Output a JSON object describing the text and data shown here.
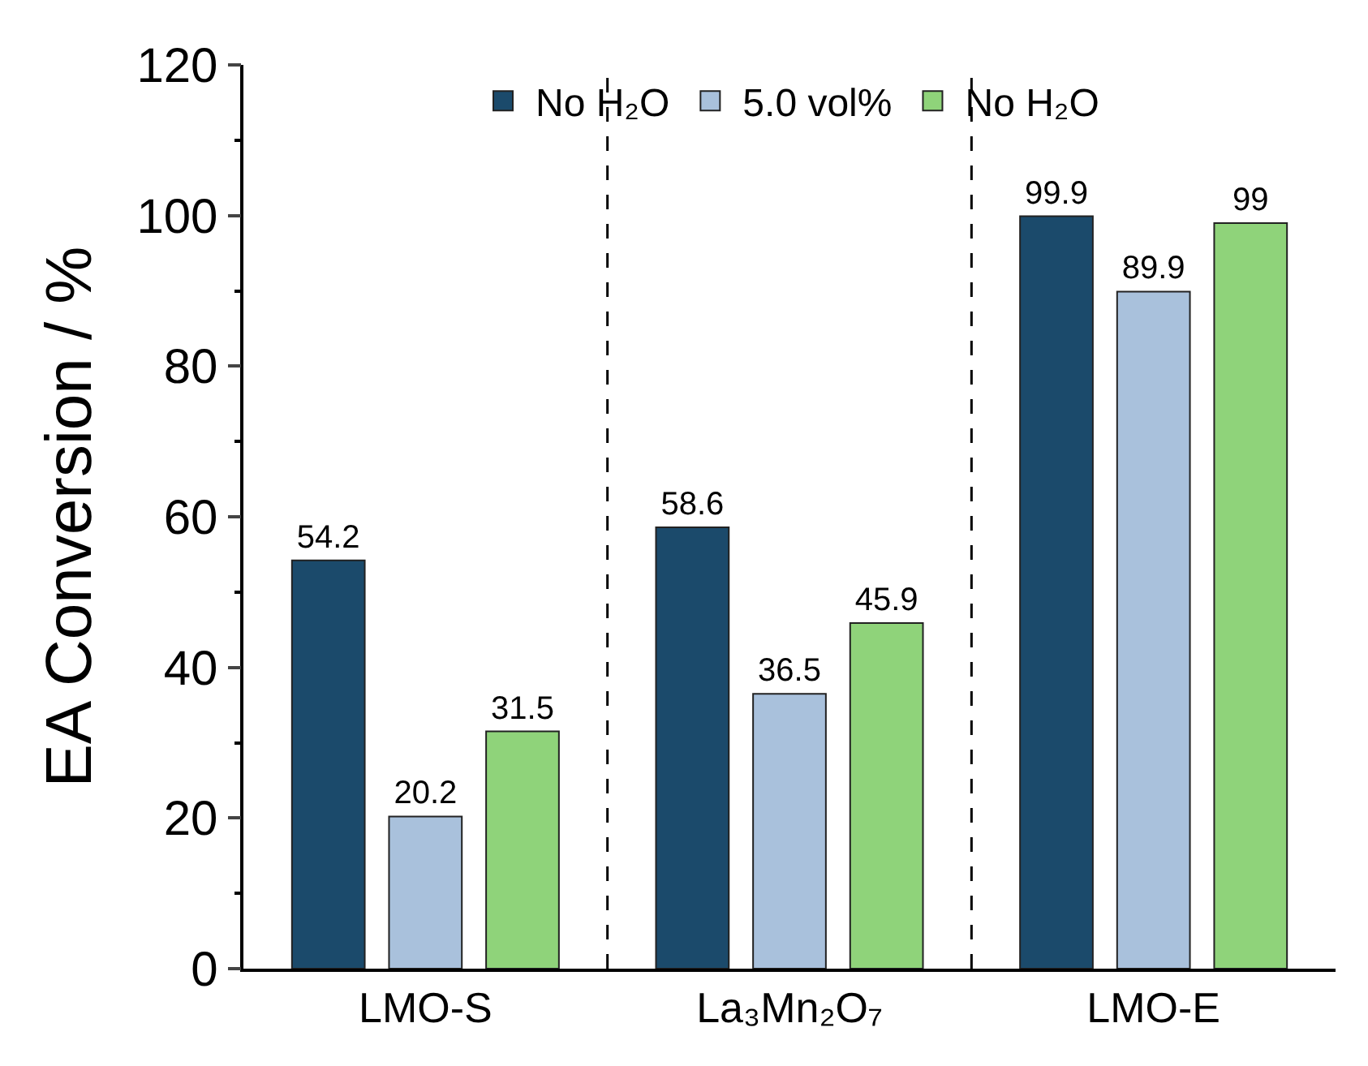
{
  "chart_data": {
    "type": "bar",
    "ylabel": "EA Conversion / %",
    "categories": [
      "LMO-S",
      "La₃Mn₂O₇",
      "LMO-E"
    ],
    "series": [
      {
        "name": "No H₂O",
        "color": "#1b4a6b",
        "values": [
          54.2,
          58.6,
          99.9
        ]
      },
      {
        "name": "5.0 vol%",
        "color": "#a9c1dc",
        "values": [
          20.2,
          36.5,
          89.9
        ]
      },
      {
        "name": "No H₂O",
        "color": "#8fd37a",
        "values": [
          31.5,
          45.9,
          99
        ]
      }
    ],
    "data_labels": true,
    "ylim": [
      0,
      120
    ],
    "yticks": [
      0,
      20,
      40,
      60,
      80,
      100,
      120
    ],
    "legend": "top"
  }
}
